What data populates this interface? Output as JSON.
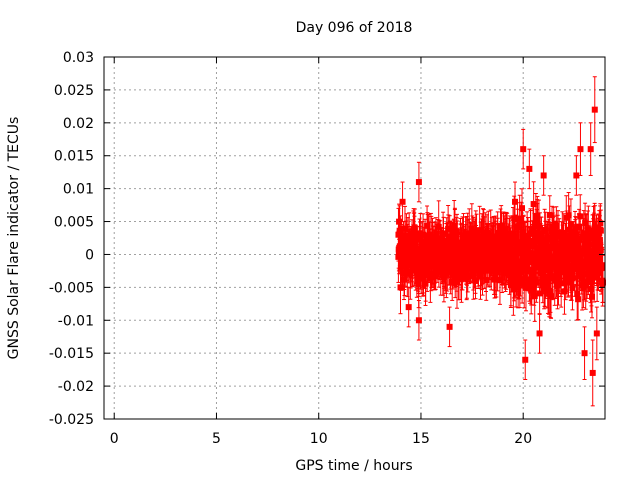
{
  "chart_data": {
    "type": "scatter",
    "title": "Day 096 of 2018",
    "xlabel": "GPS time / hours",
    "ylabel": "GNSS Solar Flare indicator / TECUs",
    "xlim": [
      -0.5,
      24
    ],
    "ylim": [
      -0.025,
      0.03
    ],
    "xticks": [
      "0",
      "5",
      "10",
      "15",
      "20"
    ],
    "xtick_values": [
      0,
      5,
      10,
      15,
      20
    ],
    "yticks": [
      "-0.025",
      "-0.02",
      "-0.015",
      "-0.01",
      "-0.005",
      "0",
      "0.005",
      "0.01",
      "0.015",
      "0.02",
      "0.025",
      "0.03"
    ],
    "ytick_values": [
      -0.025,
      -0.02,
      -0.015,
      -0.01,
      -0.005,
      0,
      0.005,
      0.01,
      0.015,
      0.02,
      0.025,
      0.03
    ],
    "grid": true,
    "marker": "filled-square",
    "error_bars": true,
    "series_color": "#ff0000",
    "series": [
      {
        "x_range": [
          13.9,
          23.9
        ],
        "typical_spread": 0.004,
        "points": [
          {
            "x": 13.9,
            "y": 0.003,
            "err": 0.004
          },
          {
            "x": 14.0,
            "y": -0.005,
            "err": 0.004
          },
          {
            "x": 14.1,
            "y": 0.008,
            "err": 0.003
          },
          {
            "x": 14.4,
            "y": -0.008,
            "err": 0.003
          },
          {
            "x": 14.9,
            "y": 0.011,
            "err": 0.003
          },
          {
            "x": 14.9,
            "y": -0.01,
            "err": 0.003
          },
          {
            "x": 16.4,
            "y": -0.011,
            "err": 0.003
          },
          {
            "x": 19.6,
            "y": 0.008,
            "err": 0.003
          },
          {
            "x": 20.0,
            "y": 0.016,
            "err": 0.003
          },
          {
            "x": 20.1,
            "y": -0.016,
            "err": 0.003
          },
          {
            "x": 20.3,
            "y": 0.013,
            "err": 0.003
          },
          {
            "x": 20.8,
            "y": -0.012,
            "err": 0.003
          },
          {
            "x": 21.0,
            "y": 0.012,
            "err": 0.003
          },
          {
            "x": 22.6,
            "y": 0.012,
            "err": 0.003
          },
          {
            "x": 22.8,
            "y": 0.016,
            "err": 0.004
          },
          {
            "x": 23.0,
            "y": -0.015,
            "err": 0.004
          },
          {
            "x": 23.3,
            "y": 0.016,
            "err": 0.004
          },
          {
            "x": 23.4,
            "y": -0.018,
            "err": 0.005
          },
          {
            "x": 23.5,
            "y": 0.022,
            "err": 0.005
          },
          {
            "x": 23.6,
            "y": -0.012,
            "err": 0.004
          }
        ]
      }
    ]
  }
}
